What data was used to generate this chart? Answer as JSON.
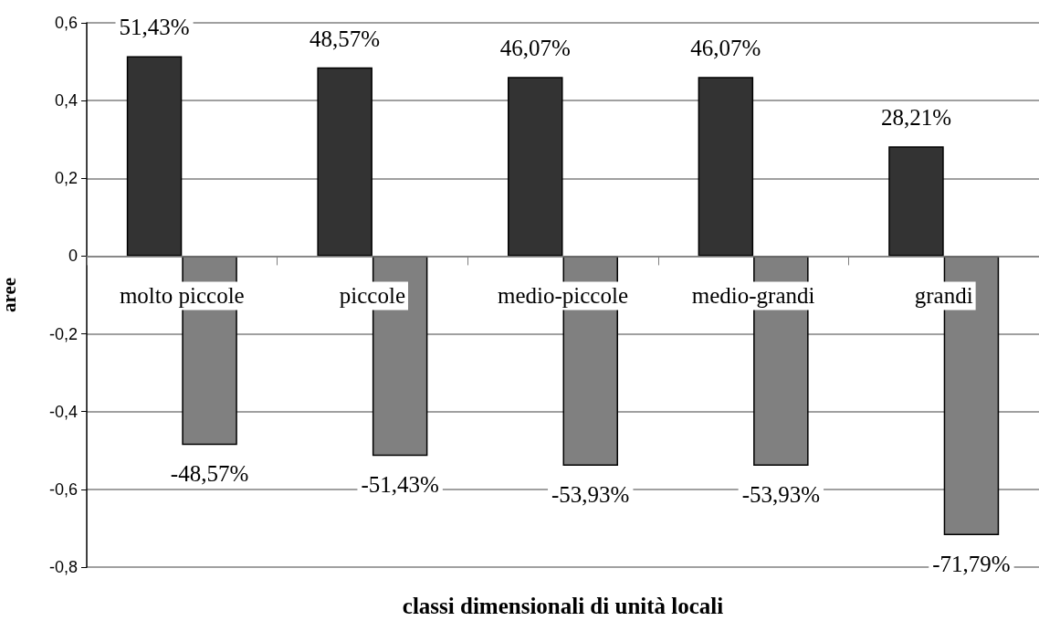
{
  "chart_data": {
    "type": "bar",
    "xlabel": "classi dimensionali di unità locali",
    "ylabel": "aree",
    "categories": [
      "molto piccole",
      "piccole",
      "medio-piccole",
      "medio-grandi",
      "grandi"
    ],
    "series": [
      {
        "color": "#333333",
        "values": [
          0.5143,
          0.4857,
          0.4607,
          0.4607,
          0.2821
        ],
        "value_labels": [
          "51,43%",
          "48,57%",
          "46,07%",
          "46,07%",
          "28,21%"
        ]
      },
      {
        "color": "#808080",
        "values": [
          -0.4857,
          -0.5143,
          -0.5393,
          -0.5393,
          -0.7179
        ],
        "value_labels": [
          "-48,57%",
          "-51,43%",
          "-53,93%",
          "-53,93%",
          "-71,79%"
        ]
      }
    ],
    "ylim": [
      -0.8,
      0.6
    ],
    "yticks": [
      {
        "value": -0.8,
        "label": "-0,8"
      },
      {
        "value": -0.6,
        "label": "-0,6"
      },
      {
        "value": -0.4,
        "label": "-0,4"
      },
      {
        "value": -0.2,
        "label": "-0,2"
      },
      0,
      {
        "value": 0.2,
        "label": "0,2"
      },
      {
        "value": 0.4,
        "label": "0,4"
      },
      {
        "value": 0.6,
        "label": "0,6"
      }
    ],
    "grid": "y"
  }
}
